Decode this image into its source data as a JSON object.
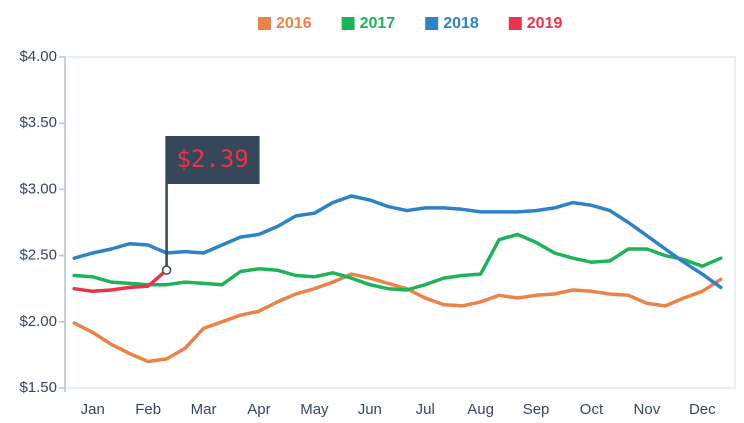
{
  "chart_data": {
    "type": "line",
    "categories": [
      null,
      "Jan",
      null,
      null,
      "Feb",
      null,
      null,
      "Mar",
      null,
      null,
      "Apr",
      null,
      null,
      "May",
      null,
      null,
      "Jun",
      null,
      null,
      "Jul",
      null,
      null,
      "Aug",
      null,
      null,
      "Sep",
      null,
      null,
      "Oct",
      null,
      null,
      "Nov",
      null,
      null,
      "Dec",
      null
    ],
    "ylim": [
      1.5,
      4.0
    ],
    "yticks": [
      {
        "value": 1.5,
        "label": "$1.50"
      },
      {
        "value": 2.0,
        "label": "$2.00"
      },
      {
        "value": 2.5,
        "label": "$2.50"
      },
      {
        "value": 3.0,
        "label": "$3.00"
      },
      {
        "value": 3.5,
        "label": "$3.50"
      },
      {
        "value": 4.0,
        "label": "$4.00"
      }
    ],
    "series": [
      {
        "name": "2016",
        "color": "#e9834a",
        "values": [
          1.99,
          1.92,
          1.83,
          1.76,
          1.7,
          1.72,
          1.8,
          1.95,
          2.0,
          2.05,
          2.08,
          2.15,
          2.21,
          2.25,
          2.3,
          2.36,
          2.33,
          2.29,
          2.25,
          2.18,
          2.13,
          2.12,
          2.15,
          2.2,
          2.18,
          2.2,
          2.21,
          2.24,
          2.23,
          2.21,
          2.2,
          2.14,
          2.12,
          2.18,
          2.23,
          2.32
        ]
      },
      {
        "name": "2017",
        "color": "#1fb25a",
        "values": [
          2.35,
          2.34,
          2.3,
          2.29,
          2.28,
          2.28,
          2.3,
          2.29,
          2.28,
          2.38,
          2.4,
          2.39,
          2.35,
          2.34,
          2.37,
          2.33,
          2.28,
          2.25,
          2.24,
          2.28,
          2.33,
          2.35,
          2.36,
          2.62,
          2.66,
          2.6,
          2.52,
          2.48,
          2.45,
          2.46,
          2.55,
          2.55,
          2.5,
          2.47,
          2.42,
          2.48
        ]
      },
      {
        "name": "2018",
        "color": "#2f83c5",
        "values": [
          2.48,
          2.52,
          2.55,
          2.59,
          2.58,
          2.52,
          2.53,
          2.52,
          2.58,
          2.64,
          2.66,
          2.72,
          2.8,
          2.82,
          2.9,
          2.95,
          2.92,
          2.87,
          2.84,
          2.86,
          2.86,
          2.85,
          2.83,
          2.83,
          2.83,
          2.84,
          2.86,
          2.9,
          2.88,
          2.84,
          2.75,
          2.65,
          2.55,
          2.45,
          2.36,
          2.26
        ]
      },
      {
        "name": "2019",
        "color": "#e8334a",
        "values": [
          2.25,
          2.23,
          2.24,
          2.26,
          2.27,
          2.39,
          null,
          null,
          null,
          null,
          null,
          null,
          null,
          null,
          null,
          null,
          null,
          null,
          null,
          null,
          null,
          null,
          null,
          null,
          null,
          null,
          null,
          null,
          null,
          null,
          null,
          null,
          null,
          null,
          null,
          null
        ],
        "value_labels": [
          null,
          null,
          null,
          null,
          null,
          "$2.39",
          null,
          null,
          null,
          null,
          null,
          null,
          null,
          null,
          null,
          null,
          null,
          null,
          null,
          null,
          null,
          null,
          null,
          null,
          null,
          null,
          null,
          null,
          null,
          null,
          null,
          null,
          null,
          null,
          null,
          null
        ]
      }
    ]
  }
}
